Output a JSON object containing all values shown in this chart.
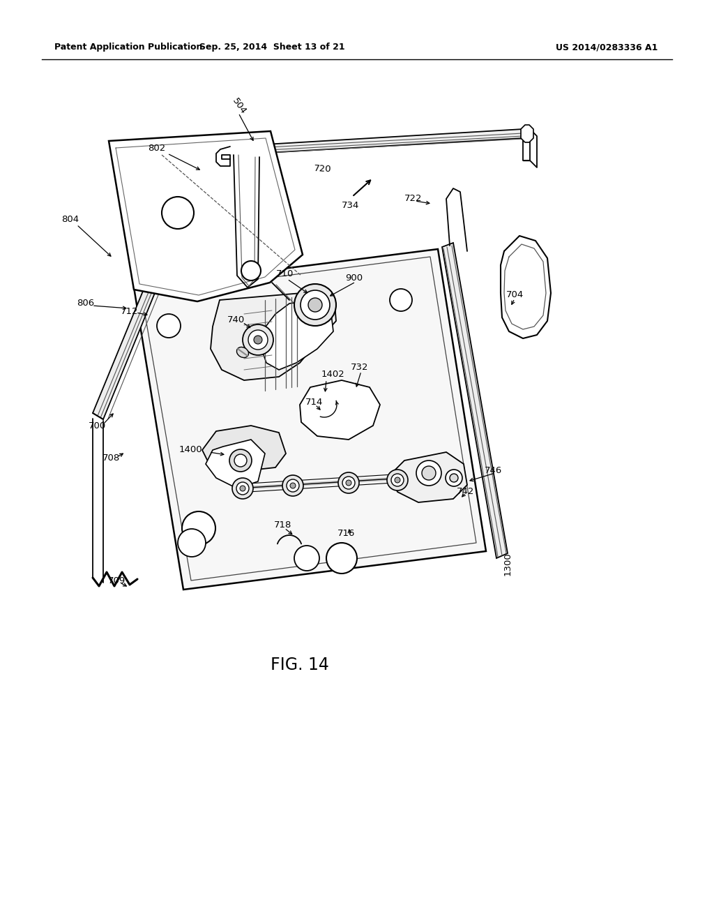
{
  "background_color": "#ffffff",
  "line_color": "#000000",
  "header_left": "Patent Application Publication",
  "header_center": "Sep. 25, 2014  Sheet 13 of 21",
  "header_right": "US 2014/0283336 A1",
  "fig_label": "FIG. 14"
}
